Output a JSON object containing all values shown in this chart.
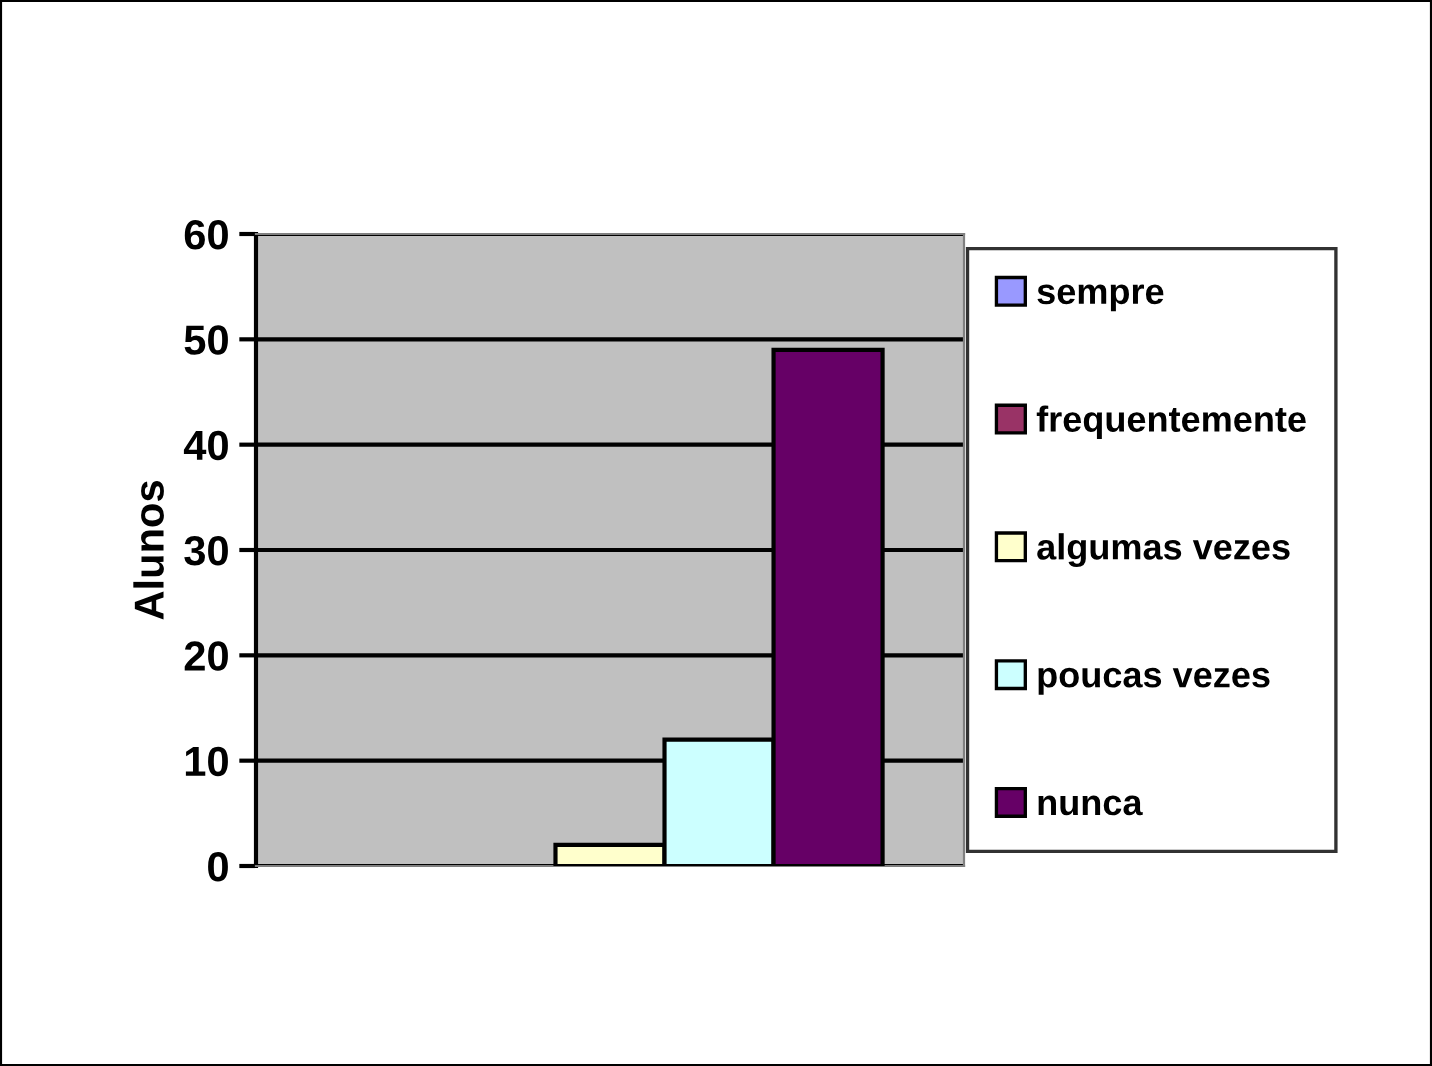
{
  "chart_data": {
    "type": "bar",
    "ylabel": "Alunos",
    "categories": [
      null
    ],
    "series": [
      {
        "name": "sempre",
        "color": "#9999ff",
        "values": [
          0
        ]
      },
      {
        "name": "frequentemente",
        "color": "#993366",
        "values": [
          0
        ]
      },
      {
        "name": "algumas vezes",
        "color": "#ffffcc",
        "values": [
          2
        ]
      },
      {
        "name": "poucas vezes",
        "color": "#ccffff",
        "values": [
          12
        ]
      },
      {
        "name": "nunca",
        "color": "#660066",
        "values": [
          49
        ]
      }
    ],
    "ylim": [
      0,
      60
    ],
    "yticks": [
      0,
      10,
      20,
      30,
      40,
      50,
      60
    ],
    "grid": "y",
    "legend": "right"
  }
}
